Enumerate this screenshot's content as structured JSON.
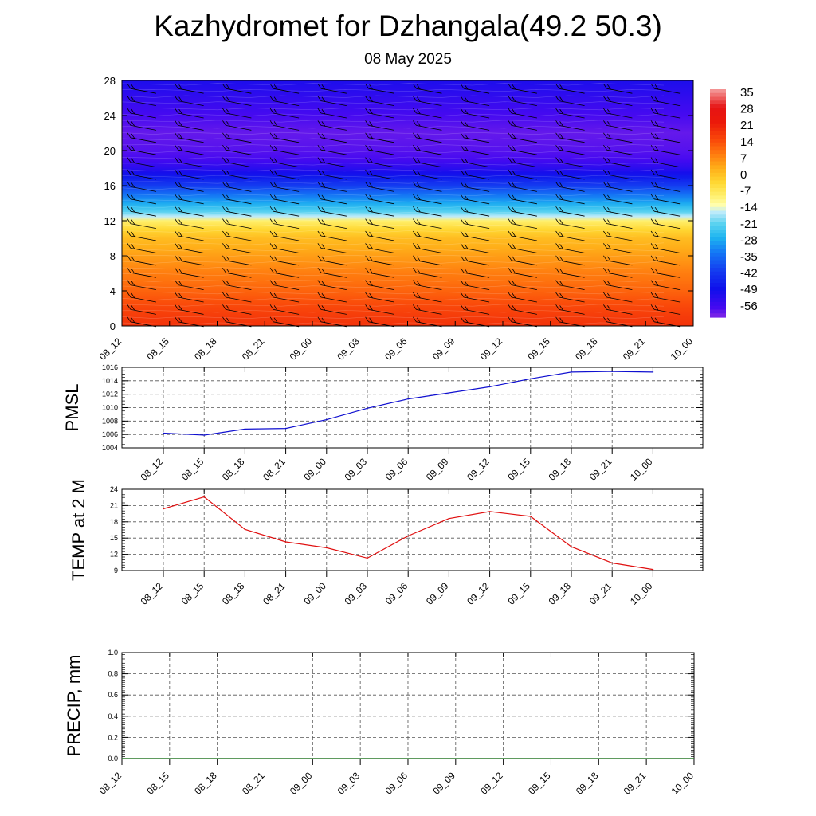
{
  "header": {
    "title": "Kazhydromet for Dzhangala(49.2 50.3)",
    "subtitle": "08 May 2025"
  },
  "chart_data": [
    {
      "type": "heatmap",
      "title": "",
      "xlabel": "",
      "ylabel": "",
      "x_ticks": [
        "08_12",
        "08_15",
        "08_18",
        "08_21",
        "09_00",
        "09_03",
        "09_06",
        "09_09",
        "09_12",
        "09_15",
        "09_18",
        "09_21",
        "10_00"
      ],
      "y_ticks": [
        0,
        4,
        8,
        12,
        16,
        20,
        24,
        28
      ],
      "ylim": [
        0,
        28
      ],
      "colorbar": {
        "labels": [
          "35",
          "28",
          "21",
          "14",
          "7",
          "0",
          "-7",
          "-14",
          "-21",
          "-28",
          "-35",
          "-42",
          "-49",
          "-56"
        ],
        "range": [
          -60,
          38
        ]
      },
      "temperature_profile": {
        "levels": [
          0,
          2,
          4,
          6,
          8,
          10,
          11,
          12,
          12.5,
          13,
          14,
          15,
          16,
          17,
          18,
          19,
          20,
          22,
          24,
          26,
          28
        ],
        "values": [
          20,
          17,
          13,
          10,
          6,
          2,
          -2,
          -8,
          -15,
          -20,
          -27,
          -33,
          -40,
          -46,
          -52,
          -56,
          -57,
          -58,
          -56,
          -53,
          -50
        ]
      },
      "wind_barbs": true,
      "grid": false
    },
    {
      "type": "line",
      "ylabel": "PMSL",
      "categories": [
        "08_12",
        "08_15",
        "08_18",
        "08_21",
        "09_00",
        "09_03",
        "09_06",
        "09_09",
        "09_12",
        "09_15",
        "09_18",
        "09_21",
        "10_00"
      ],
      "y_ticks": [
        1004,
        1006,
        1008,
        1010,
        1012,
        1014,
        1016
      ],
      "ylim": [
        1004,
        1016
      ],
      "series": [
        {
          "color": "#1010d0",
          "values": [
            1006.2,
            1005.9,
            1006.8,
            1006.9,
            1008.2,
            1009.9,
            1011.3,
            1012.2,
            1013.1,
            1014.3,
            1015.3,
            1015.4,
            1015.3
          ]
        }
      ],
      "grid": true
    },
    {
      "type": "line",
      "ylabel": "TEMP at 2 M",
      "categories": [
        "08_12",
        "08_15",
        "08_18",
        "08_21",
        "09_00",
        "09_03",
        "09_06",
        "09_09",
        "09_12",
        "09_15",
        "09_18",
        "09_21",
        "10_00"
      ],
      "y_ticks": [
        9,
        12,
        15,
        18,
        21,
        24
      ],
      "ylim": [
        9,
        24
      ],
      "series": [
        {
          "color": "#e01010",
          "values": [
            20.4,
            22.6,
            16.6,
            14.3,
            13.2,
            11.3,
            15.4,
            18.6,
            19.9,
            19.0,
            13.4,
            10.4,
            9.2
          ]
        }
      ],
      "grid": true
    },
    {
      "type": "bar",
      "ylabel": "PRECIP, mm",
      "categories": [
        "08_12",
        "08_15",
        "08_18",
        "08_21",
        "09_00",
        "09_03",
        "09_06",
        "09_09",
        "09_12",
        "09_15",
        "09_18",
        "09_21",
        "10_00"
      ],
      "y_ticks": [
        "0.0",
        "0.2",
        "0.4",
        "0.6",
        "0.8",
        "1.0"
      ],
      "ylim": [
        0,
        1
      ],
      "values": [
        0,
        0,
        0,
        0,
        0,
        0,
        0,
        0,
        0,
        0,
        0,
        0,
        0
      ],
      "grid": true
    }
  ]
}
